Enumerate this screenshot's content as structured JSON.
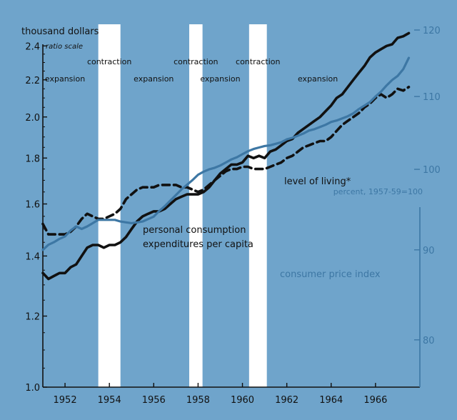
{
  "chart_data": {
    "type": "line",
    "title": "",
    "left_axis": {
      "unit_label": "thousand dollars",
      "scale_label": "ratio scale",
      "scale": "log",
      "ylim": [
        1.0,
        2.5
      ],
      "ticks": [
        1.0,
        1.2,
        1.4,
        1.6,
        1.8,
        2.0,
        2.2,
        2.4
      ],
      "tick_labels": [
        "1.0",
        "1.2",
        "1.4",
        "1.6",
        "1.8",
        "2.0",
        "2.2",
        "2.4"
      ]
    },
    "right_axis": {
      "unit_label": "percent, 1957-59=100",
      "scale": "log",
      "ylim": [
        75.2,
        120
      ],
      "ticks": [
        80,
        90,
        100,
        110,
        120
      ],
      "tick_labels": [
        "80",
        "90",
        "100",
        "110",
        "120"
      ]
    },
    "x_axis": {
      "xlim": [
        1951.0,
        1968.0
      ],
      "ticks": [
        1952,
        1954,
        1956,
        1958,
        1960,
        1962,
        1964,
        1966
      ],
      "tick_labels": [
        "1952",
        "1954",
        "1956",
        "1958",
        "1960",
        "1962",
        "1964",
        "1966"
      ]
    },
    "contractions": [
      {
        "start": 1953.5,
        "end": 1954.5
      },
      {
        "start": 1957.6,
        "end": 1958.2
      },
      {
        "start": 1960.3,
        "end": 1961.1
      }
    ],
    "phase_labels": [
      {
        "text": "expansion",
        "x": 1952.0,
        "y": 2.19
      },
      {
        "text": "contraction",
        "x": 1954.0,
        "y": 2.29
      },
      {
        "text": "expansion",
        "x": 1956.0,
        "y": 2.19
      },
      {
        "text": "contraction",
        "x": 1957.9,
        "y": 2.29
      },
      {
        "text": "expansion",
        "x": 1959.0,
        "y": 2.19
      },
      {
        "text": "contraction",
        "x": 1960.7,
        "y": 2.29
      },
      {
        "text": "expansion",
        "x": 1963.4,
        "y": 2.19
      }
    ],
    "series": [
      {
        "name": "personal consumption expenditures per capita",
        "axis": "left",
        "style": "solid",
        "color": "#111111",
        "x": [
          1951.0,
          1951.25,
          1951.5,
          1951.75,
          1952.0,
          1952.25,
          1952.5,
          1952.75,
          1953.0,
          1953.25,
          1953.5,
          1953.75,
          1954.0,
          1954.25,
          1954.5,
          1954.75,
          1955.0,
          1955.25,
          1955.5,
          1955.75,
          1956.0,
          1956.25,
          1956.5,
          1956.75,
          1957.0,
          1957.25,
          1957.5,
          1957.75,
          1958.0,
          1958.25,
          1958.5,
          1958.75,
          1959.0,
          1959.25,
          1959.5,
          1959.75,
          1960.0,
          1960.25,
          1960.5,
          1960.75,
          1961.0,
          1961.25,
          1961.5,
          1961.75,
          1962.0,
          1962.25,
          1962.5,
          1962.75,
          1963.0,
          1963.25,
          1963.5,
          1963.75,
          1964.0,
          1964.25,
          1964.5,
          1964.75,
          1965.0,
          1965.25,
          1965.5,
          1965.75,
          1966.0,
          1966.25,
          1966.5,
          1966.75,
          1967.0,
          1967.25,
          1967.5
        ],
        "values": [
          1.34,
          1.32,
          1.33,
          1.34,
          1.34,
          1.36,
          1.37,
          1.4,
          1.43,
          1.44,
          1.44,
          1.43,
          1.44,
          1.44,
          1.45,
          1.47,
          1.5,
          1.53,
          1.55,
          1.56,
          1.57,
          1.57,
          1.58,
          1.6,
          1.62,
          1.63,
          1.64,
          1.64,
          1.64,
          1.65,
          1.67,
          1.7,
          1.73,
          1.75,
          1.77,
          1.77,
          1.78,
          1.81,
          1.8,
          1.81,
          1.8,
          1.83,
          1.84,
          1.86,
          1.88,
          1.89,
          1.92,
          1.94,
          1.96,
          1.98,
          2.0,
          2.03,
          2.06,
          2.1,
          2.12,
          2.16,
          2.2,
          2.24,
          2.28,
          2.33,
          2.36,
          2.38,
          2.4,
          2.41,
          2.45,
          2.46,
          2.48
        ]
      },
      {
        "name": "level of living*",
        "axis": "left",
        "style": "dashed",
        "color": "#111111",
        "x": [
          1951.0,
          1951.25,
          1951.5,
          1951.75,
          1952.0,
          1952.25,
          1952.5,
          1952.75,
          1953.0,
          1953.25,
          1953.5,
          1953.75,
          1954.0,
          1954.25,
          1954.5,
          1954.75,
          1955.0,
          1955.25,
          1955.5,
          1955.75,
          1956.0,
          1956.25,
          1956.5,
          1956.75,
          1957.0,
          1957.25,
          1957.5,
          1957.75,
          1958.0,
          1958.25,
          1958.5,
          1958.75,
          1959.0,
          1959.25,
          1959.5,
          1959.75,
          1960.0,
          1960.25,
          1960.5,
          1960.75,
          1961.0,
          1961.25,
          1961.5,
          1961.75,
          1962.0,
          1962.25,
          1962.5,
          1962.75,
          1963.0,
          1963.25,
          1963.5,
          1963.75,
          1964.0,
          1964.25,
          1964.5,
          1964.75,
          1965.0,
          1965.25,
          1965.5,
          1965.75,
          1966.0,
          1966.25,
          1966.5,
          1966.75,
          1967.0,
          1967.25,
          1967.5
        ],
        "values": [
          1.52,
          1.48,
          1.48,
          1.48,
          1.48,
          1.49,
          1.51,
          1.54,
          1.56,
          1.55,
          1.54,
          1.54,
          1.55,
          1.56,
          1.58,
          1.62,
          1.64,
          1.66,
          1.67,
          1.67,
          1.67,
          1.68,
          1.68,
          1.68,
          1.68,
          1.67,
          1.67,
          1.66,
          1.65,
          1.66,
          1.68,
          1.7,
          1.72,
          1.74,
          1.75,
          1.75,
          1.76,
          1.76,
          1.75,
          1.75,
          1.75,
          1.76,
          1.77,
          1.78,
          1.8,
          1.81,
          1.83,
          1.85,
          1.86,
          1.87,
          1.88,
          1.88,
          1.9,
          1.93,
          1.96,
          1.98,
          2.0,
          2.02,
          2.05,
          2.07,
          2.1,
          2.12,
          2.1,
          2.12,
          2.15,
          2.14,
          2.16
        ]
      },
      {
        "name": "consumer price index",
        "axis": "right",
        "style": "solid",
        "color": "#3d77a4",
        "x": [
          1951.0,
          1951.25,
          1951.5,
          1951.75,
          1952.0,
          1952.25,
          1952.5,
          1952.75,
          1953.0,
          1953.25,
          1953.5,
          1953.75,
          1954.0,
          1954.25,
          1954.5,
          1954.75,
          1955.0,
          1955.25,
          1955.5,
          1955.75,
          1956.0,
          1956.25,
          1956.5,
          1956.75,
          1957.0,
          1957.25,
          1957.5,
          1957.75,
          1958.0,
          1958.25,
          1958.5,
          1958.75,
          1959.0,
          1959.25,
          1959.5,
          1959.75,
          1960.0,
          1960.25,
          1960.5,
          1960.75,
          1961.0,
          1961.25,
          1961.5,
          1961.75,
          1962.0,
          1962.25,
          1962.5,
          1962.75,
          1963.0,
          1963.25,
          1963.5,
          1963.75,
          1964.0,
          1964.25,
          1964.5,
          1964.75,
          1965.0,
          1965.25,
          1965.5,
          1965.75,
          1966.0,
          1966.25,
          1966.5,
          1966.75,
          1967.0,
          1967.25,
          1967.5
        ],
        "values": [
          90.0,
          90.6,
          90.9,
          91.3,
          91.6,
          92.3,
          92.8,
          92.5,
          92.8,
          93.2,
          93.6,
          93.6,
          93.6,
          93.6,
          93.4,
          93.3,
          93.2,
          93.3,
          93.4,
          93.7,
          94.0,
          94.7,
          95.3,
          96.0,
          96.7,
          97.4,
          98.0,
          98.6,
          99.3,
          99.7,
          100.0,
          100.2,
          100.5,
          100.9,
          101.3,
          101.6,
          102.0,
          102.4,
          102.7,
          102.9,
          103.1,
          103.2,
          103.4,
          103.6,
          104.0,
          104.2,
          104.5,
          104.8,
          105.2,
          105.4,
          105.7,
          106.0,
          106.4,
          106.6,
          106.9,
          107.2,
          107.6,
          108.2,
          108.7,
          109.2,
          110.0,
          110.7,
          111.6,
          112.4,
          113.0,
          114.0,
          115.7
        ]
      }
    ],
    "series_labels": [
      {
        "series": 0,
        "lines": [
          "personal consumption",
          "expenditures per capita"
        ]
      },
      {
        "series": 1,
        "lines": [
          "level of living*"
        ]
      },
      {
        "series": 2,
        "lines": [
          "consumer price index"
        ]
      }
    ]
  }
}
